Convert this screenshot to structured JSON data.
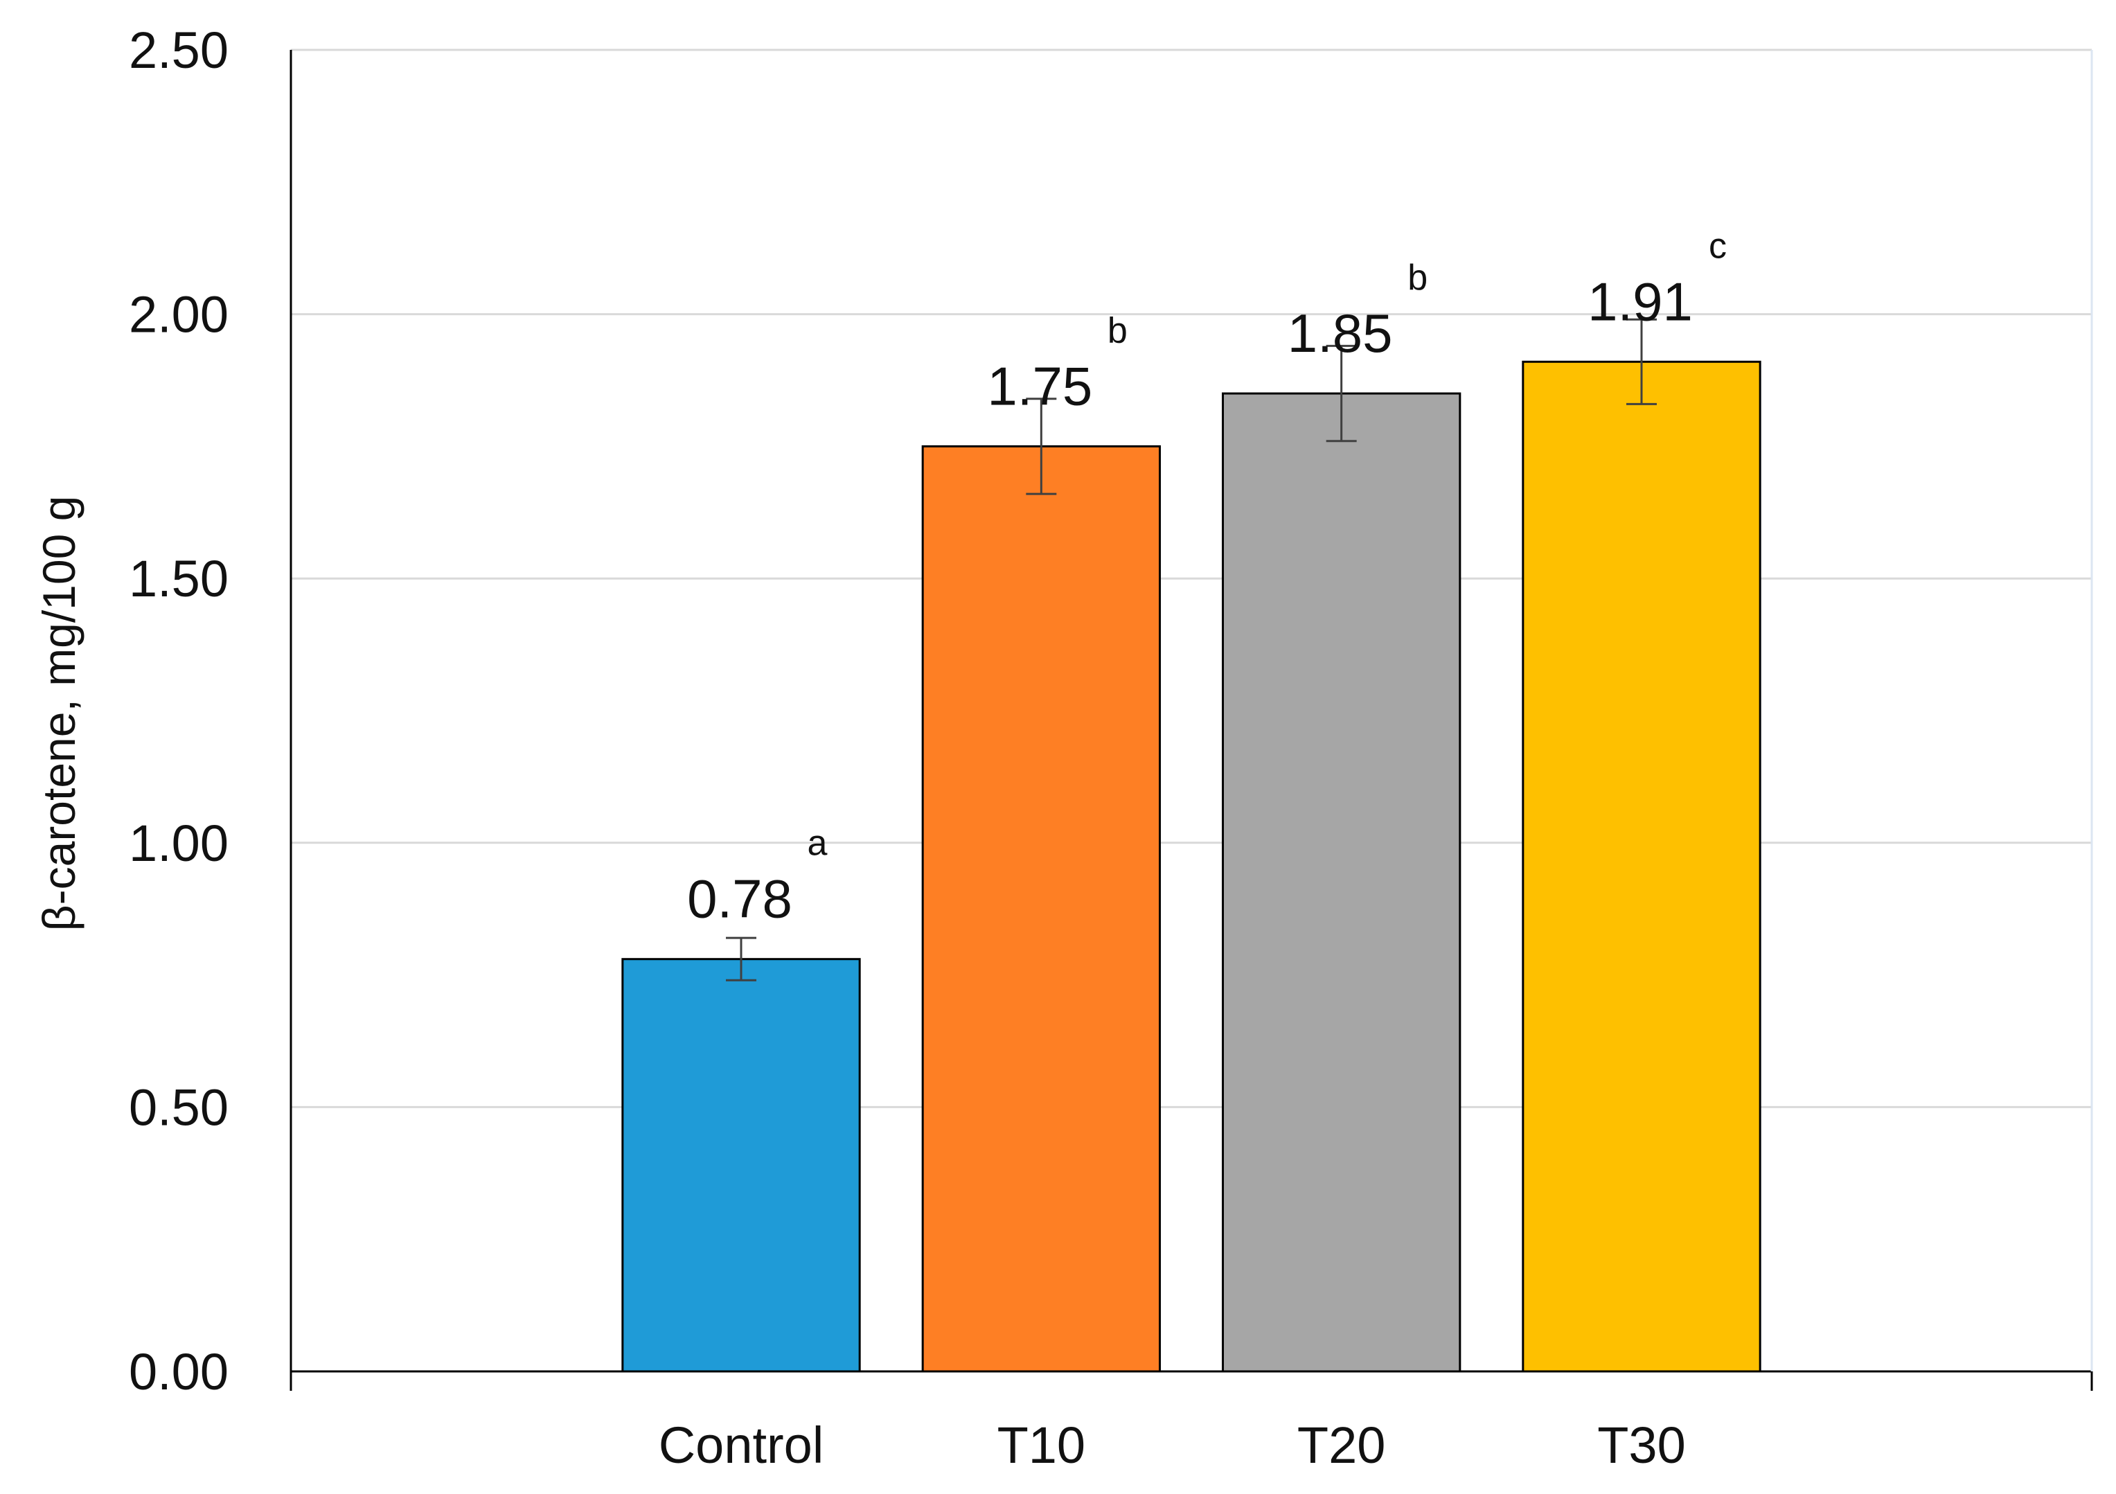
{
  "chart_data": {
    "type": "bar",
    "title": "",
    "xlabel": "",
    "ylabel": "β-carotene, mg/100 g",
    "ylim": [
      0,
      2.5
    ],
    "yticks": [
      0,
      0.5,
      1.0,
      1.5,
      2.0,
      2.5
    ],
    "ytick_labels": [
      "0.00",
      "0.50",
      "1.00",
      "1.50",
      "2.00",
      "2.50"
    ],
    "grid": true,
    "legend": "none",
    "categories": [
      "Control",
      "T10",
      "T20",
      "T30"
    ],
    "values": [
      0.78,
      1.75,
      1.85,
      1.91
    ],
    "value_labels": [
      "0.78",
      "1.75",
      "1.85",
      "1.91"
    ],
    "error_low": [
      0.74,
      1.66,
      1.76,
      1.83
    ],
    "error_high": [
      0.82,
      1.84,
      1.94,
      1.99
    ],
    "significance_letters": [
      "a",
      "b",
      "b",
      "c"
    ],
    "colors": [
      "#1f9bd7",
      "#fe7f24",
      "#a6a6a6",
      "#fec000"
    ]
  }
}
